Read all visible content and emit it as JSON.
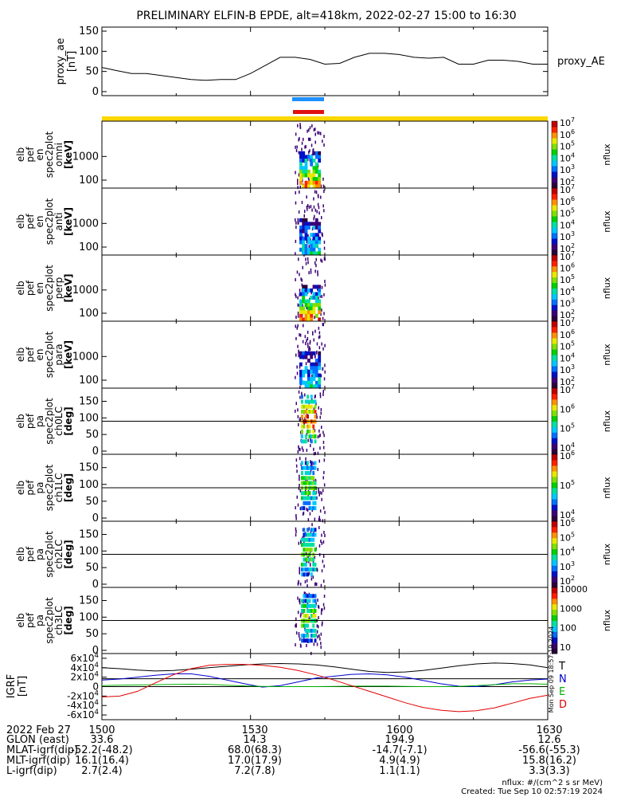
{
  "title": "PRELIMINARY ELFIN-B EPDE, alt=418km, 2022-02-27 15:00 to 16:30",
  "colors": {
    "ae_bar_blue": "#1e90ff",
    "ae_bar_red": "#e01010",
    "yellow_band": "#ffd700",
    "T": "#000000",
    "N": "#0000d0",
    "E": "#00b000",
    "D": "#e00000"
  },
  "chart_data": [
    {
      "type": "line",
      "name": "proxy_ae",
      "ylabel": [
        "proxy_ae",
        "[nT]"
      ],
      "legend": "proxy_AE",
      "ylim": [
        -10,
        160
      ],
      "yticks": [
        "0",
        "50",
        "100",
        "150"
      ],
      "x": [
        0,
        3,
        6,
        9,
        12,
        15,
        18,
        21,
        24,
        27,
        30,
        33,
        36,
        39,
        42,
        45,
        48,
        51,
        54,
        57,
        60,
        63,
        66,
        69,
        72,
        75,
        78,
        81,
        84,
        87,
        90
      ],
      "values": [
        60,
        52,
        45,
        45,
        40,
        35,
        30,
        28,
        30,
        30,
        45,
        65,
        85,
        85,
        80,
        68,
        70,
        85,
        95,
        95,
        92,
        85,
        83,
        85,
        68,
        68,
        78,
        78,
        75,
        68,
        68
      ]
    },
    {
      "type": "heatmap",
      "panels": [
        {
          "ylabel": [
            "elb",
            "pef",
            "en",
            "spec2plot",
            "omni",
            "[keV]"
          ],
          "yticks": [
            "100",
            "1000"
          ],
          "scale": "log",
          "zticks": [
            "10^2",
            "10^3",
            "10^4",
            "10^5",
            "10^6",
            "10^7"
          ],
          "zlabel": "nflux"
        },
        {
          "ylabel": [
            "elb",
            "pef",
            "en",
            "spec2plot",
            "anti",
            "[keV]"
          ],
          "yticks": [
            "100",
            "1000"
          ],
          "scale": "log",
          "zticks": [
            "10^2",
            "10^3",
            "10^4",
            "10^5",
            "10^6",
            "10^7"
          ],
          "zlabel": "nflux"
        },
        {
          "ylabel": [
            "elb",
            "pef",
            "en",
            "spec2plot",
            "perp",
            "[keV]"
          ],
          "yticks": [
            "100",
            "1000"
          ],
          "scale": "log",
          "zticks": [
            "10^2",
            "10^3",
            "10^4",
            "10^5",
            "10^6",
            "10^7"
          ],
          "zlabel": "nflux"
        },
        {
          "ylabel": [
            "elb",
            "pef",
            "en",
            "spec2plot",
            "para",
            "[keV]"
          ],
          "yticks": [
            "100",
            "1000"
          ],
          "scale": "log",
          "zticks": [
            "10^2",
            "10^3",
            "10^4",
            "10^5",
            "10^6",
            "10^7"
          ],
          "zlabel": "nflux"
        },
        {
          "ylabel": [
            "elb",
            "pef",
            "pa",
            "spec2plot",
            "ch0LC",
            "[deg]"
          ],
          "yticks": [
            "0",
            "50",
            "100",
            "150"
          ],
          "scale": "lin",
          "zticks": [
            "10^4",
            "10^5",
            "10^6",
            "10^7"
          ],
          "zlabel": "nflux"
        },
        {
          "ylabel": [
            "elb",
            "pef",
            "pa",
            "spec2plot",
            "ch1LC",
            "[deg]"
          ],
          "yticks": [
            "0",
            "50",
            "100",
            "150"
          ],
          "scale": "lin",
          "zticks": [
            "10^4",
            "10^5",
            "10^6"
          ],
          "zlabel": "nflux"
        },
        {
          "ylabel": [
            "elb",
            "pef",
            "pa",
            "spec2plot",
            "ch2LC",
            "[deg]"
          ],
          "yticks": [
            "0",
            "50",
            "100",
            "150"
          ],
          "scale": "lin",
          "zticks": [
            "10^2",
            "10^3",
            "10^4",
            "10^5",
            "10^6"
          ],
          "zlabel": "nflux"
        },
        {
          "ylabel": [
            "elb",
            "pef",
            "pa",
            "spec2plot",
            "ch3LC",
            "[deg]"
          ],
          "yticks": [
            "0",
            "50",
            "100",
            "150"
          ],
          "scale": "lin",
          "zticks": [
            "10",
            "100",
            "1000",
            "10000"
          ],
          "zlabel": "nflux"
        }
      ]
    },
    {
      "type": "line",
      "name": "IGRF",
      "ylabel": [
        "IGRF",
        "[nT]"
      ],
      "ylim": [
        -70000,
        70000
      ],
      "yticks": [
        "6x10^4",
        "4x10^4",
        "2x10^4",
        "0",
        "-2x10^4",
        "-4x10^4",
        "-6x10^4"
      ],
      "series": [
        {
          "name": "T",
          "values": [
            40000,
            38000,
            35000,
            33000,
            34000,
            37000,
            40000,
            43000,
            46000,
            48000,
            49000,
            48000,
            46000,
            42000,
            37000,
            32000,
            30000,
            31000,
            34000,
            39000,
            44000,
            48000,
            50000,
            49000,
            46000,
            40000
          ]
        },
        {
          "name": "N",
          "values": [
            14000,
            16000,
            20000,
            24000,
            27000,
            27000,
            22000,
            14000,
            6000,
            -1000,
            2000,
            10000,
            18000,
            22000,
            26000,
            27000,
            25000,
            20000,
            13000,
            6000,
            1000,
            0,
            4000,
            10000,
            14000,
            16000
          ]
        },
        {
          "name": "E",
          "values": [
            2000,
            3000,
            3500,
            4000,
            4500,
            5000,
            4500,
            3000,
            1500,
            500,
            0,
            0,
            0,
            500,
            1000,
            1000,
            1000,
            500,
            0,
            0,
            500,
            2000,
            4000,
            6000,
            6000,
            5000
          ]
        },
        {
          "name": "D",
          "values": [
            -22000,
            -20000,
            -10000,
            8000,
            25000,
            38000,
            45000,
            47000,
            47000,
            45000,
            41000,
            34000,
            25000,
            14000,
            2000,
            -10000,
            -22000,
            -34000,
            -44000,
            -50000,
            -53000,
            -51000,
            -45000,
            -35000,
            -25000,
            -18000
          ]
        }
      ],
      "legend": [
        "T",
        "N",
        "E",
        "D"
      ]
    }
  ],
  "time_axis": {
    "ticks": [
      "1500",
      "1530",
      "1600",
      "1630"
    ],
    "row_labels": [
      "2022 Feb 27",
      "GLON (east)",
      "MLAT-igrf(dip)",
      "MLT-igrf(dip)",
      "L-igrf(dip)"
    ],
    "columns": [
      [
        "1500",
        "33.6",
        "-52.2(-48.2)",
        "16.1(16.4)",
        "2.7(2.4)"
      ],
      [
        "1530",
        "14.3",
        "68.0(68.3)",
        "17.0(17.9)",
        "7.2(7.8)"
      ],
      [
        "1600",
        "194.9",
        "-14.7(-7.1)",
        "4.9(4.9)",
        "1.1(1.1)"
      ],
      [
        "1630",
        "12.6",
        "-56.6(-55.3)",
        "15.8(16.2)",
        "3.3(3.3)"
      ]
    ]
  },
  "footer": {
    "units": "nflux: #/(cm^2 s sr MeV)",
    "created": "Created: Tue Sep 10 02:57:19 2024",
    "timestamp_vertical": "Mon Sep 09 18:57:19 2024"
  }
}
